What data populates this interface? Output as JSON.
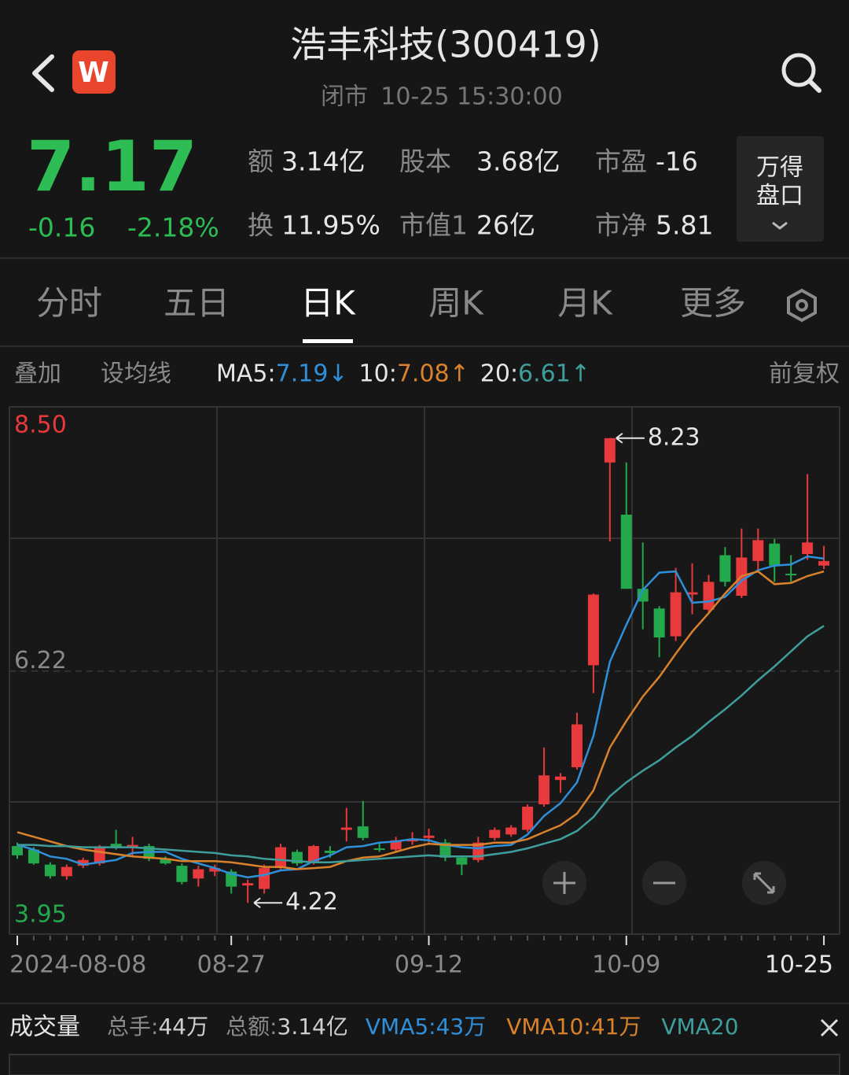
{
  "header": {
    "logo": "W",
    "title": "浩丰科技(300419)",
    "status": "闭市",
    "time": "10-25 15:30:00"
  },
  "quote": {
    "price": "7.17",
    "change": "-0.16",
    "change_pct": "-2.18%",
    "stats": [
      [
        {
          "label": "额",
          "value": "3.14亿"
        },
        {
          "label": "股本",
          "value": "3.68亿"
        },
        {
          "label": "市盈",
          "value": "-16"
        }
      ],
      [
        {
          "label": "换",
          "value": "11.95%"
        },
        {
          "label": "市值1",
          "value": "26亿"
        },
        {
          "label": "市净",
          "value": "5.81"
        }
      ]
    ],
    "panel_button": [
      "万得",
      "盘口"
    ]
  },
  "tabs": {
    "items": [
      "分时",
      "五日",
      "日K",
      "周K",
      "月K",
      "更多"
    ],
    "active": 2
  },
  "indicators": {
    "overlay": "叠加",
    "set_ma": "设均线",
    "ma": [
      {
        "name": "MA5:",
        "value": "7.19",
        "arrow": "↓"
      },
      {
        "name": "10:",
        "value": "7.08",
        "arrow": "↑"
      },
      {
        "name": "20:",
        "value": "6.61",
        "arrow": "↑"
      }
    ],
    "adjust": "前复权"
  },
  "chart_data": {
    "type": "candlestick",
    "categories": [
      "2024-08-08",
      null,
      null,
      null,
      null,
      null,
      null,
      null,
      null,
      null,
      null,
      null,
      null,
      "08-27",
      null,
      null,
      null,
      null,
      null,
      null,
      null,
      null,
      null,
      null,
      null,
      "09-12",
      null,
      null,
      null,
      null,
      null,
      null,
      null,
      null,
      null,
      null,
      null,
      "10-09",
      null,
      null,
      null,
      null,
      null,
      null,
      null,
      null,
      null,
      null,
      null,
      "10-25"
    ],
    "open": [
      4.71,
      4.68,
      4.55,
      4.45,
      4.54,
      4.56,
      4.73,
      4.7,
      4.71,
      4.6,
      4.54,
      4.43,
      4.49,
      4.49,
      4.37,
      4.34,
      4.52,
      4.66,
      4.57,
      4.67,
      4.85,
      4.88,
      4.69,
      4.68,
      4.75,
      4.78,
      4.74,
      4.61,
      4.59,
      4.78,
      4.81,
      4.85,
      5.07,
      5.28,
      5.39,
      6.27,
      8.02,
      7.57,
      6.93,
      6.76,
      6.52,
      6.88,
      6.75,
      7.22,
      6.87,
      7.17,
      7.32,
      7.06,
      7.23,
      7.13
    ],
    "high": [
      4.74,
      4.7,
      4.57,
      4.55,
      4.61,
      4.72,
      4.85,
      4.79,
      4.73,
      4.62,
      4.56,
      4.54,
      4.55,
      4.51,
      4.42,
      4.55,
      4.73,
      4.68,
      4.72,
      4.71,
      5.04,
      5.1,
      4.73,
      4.79,
      4.83,
      4.86,
      4.77,
      4.63,
      4.79,
      4.87,
      4.89,
      5.07,
      5.56,
      5.34,
      5.86,
      6.89,
      8.23,
      8.02,
      7.33,
      6.78,
      7.11,
      7.15,
      7.05,
      7.29,
      7.45,
      7.45,
      7.36,
      7.22,
      7.92,
      7.3
    ],
    "low": [
      4.6,
      4.55,
      4.43,
      4.42,
      4.52,
      4.54,
      4.68,
      4.62,
      4.58,
      4.55,
      4.38,
      4.36,
      4.45,
      4.3,
      4.22,
      4.3,
      4.5,
      4.54,
      4.55,
      4.61,
      4.75,
      4.76,
      4.66,
      4.66,
      4.72,
      4.74,
      4.58,
      4.46,
      4.57,
      4.76,
      4.79,
      4.83,
      5.05,
      5.17,
      5.37,
      6.03,
      7.34,
      6.93,
      6.58,
      6.34,
      6.48,
      6.71,
      6.73,
      6.95,
      6.85,
      7.07,
      6.99,
      6.99,
      7.18,
      7.1
    ],
    "close": [
      4.63,
      4.56,
      4.45,
      4.53,
      4.59,
      4.7,
      4.7,
      4.72,
      4.6,
      4.56,
      4.4,
      4.51,
      4.52,
      4.36,
      4.39,
      4.52,
      4.7,
      4.56,
      4.71,
      4.65,
      4.87,
      4.78,
      4.68,
      4.76,
      4.77,
      4.8,
      4.61,
      4.55,
      4.74,
      4.85,
      4.87,
      5.05,
      5.32,
      5.31,
      5.76,
      6.88,
      8.23,
      6.93,
      6.82,
      6.51,
      6.9,
      6.9,
      6.99,
      6.99,
      7.2,
      7.35,
      7.13,
      7.05,
      7.33,
      7.17
    ],
    "up_color": "#e8393d",
    "down_color": "#23a84b",
    "lines": [
      {
        "color": "#2f8fd8",
        "values": [
          4.72,
          4.68,
          4.62,
          4.6,
          4.55,
          4.57,
          4.59,
          4.65,
          4.66,
          4.66,
          4.6,
          4.56,
          4.52,
          4.47,
          4.44,
          4.46,
          4.5,
          4.51,
          4.58,
          4.63,
          4.7,
          4.71,
          4.74,
          4.75,
          4.77,
          4.76,
          4.72,
          4.7,
          4.69,
          4.71,
          4.72,
          4.81,
          4.97,
          5.08,
          5.26,
          5.66,
          6.3,
          6.62,
          6.92,
          7.07,
          7.08,
          6.81,
          6.82,
          6.86,
          7.0,
          7.09,
          7.13,
          7.14,
          7.21,
          7.19
        ]
      },
      {
        "color": "#d9822b",
        "values": [
          4.83,
          4.79,
          4.75,
          4.71,
          4.68,
          4.66,
          4.64,
          4.62,
          4.61,
          4.6,
          4.58,
          4.58,
          4.58,
          4.57,
          4.55,
          4.53,
          4.53,
          4.51,
          4.52,
          4.53,
          4.58,
          4.61,
          4.62,
          4.66,
          4.7,
          4.73,
          4.72,
          4.72,
          4.72,
          4.74,
          4.74,
          4.77,
          4.83,
          4.89,
          4.99,
          5.19,
          5.56,
          5.79,
          6.0,
          6.17,
          6.37,
          6.56,
          6.72,
          6.89,
          7.04,
          7.08,
          6.97,
          6.98,
          7.04,
          7.08
        ]
      },
      {
        "color": "#3f9e9c",
        "values": [
          4.72,
          4.72,
          4.71,
          4.71,
          4.7,
          4.7,
          4.7,
          4.7,
          4.69,
          4.68,
          4.67,
          4.66,
          4.65,
          4.63,
          4.62,
          4.6,
          4.59,
          4.58,
          4.57,
          4.57,
          4.58,
          4.59,
          4.6,
          4.61,
          4.62,
          4.63,
          4.62,
          4.62,
          4.62,
          4.64,
          4.66,
          4.69,
          4.73,
          4.77,
          4.84,
          4.96,
          5.14,
          5.26,
          5.36,
          5.45,
          5.56,
          5.66,
          5.78,
          5.89,
          6.01,
          6.14,
          6.26,
          6.39,
          6.52,
          6.61
        ]
      }
    ],
    "max_label": 8.23,
    "min_label": 4.22,
    "ylim": [
      3.95,
      8.5
    ],
    "yticks": [
      {
        "value": 8.5,
        "label": "8.50"
      },
      6.22,
      3.95
    ],
    "ytick_colors": [
      "#e8393d",
      "#8a8a8a",
      "#23a84b"
    ],
    "grid": true
  },
  "volume_bar": {
    "title": "成交量",
    "items": [
      {
        "label": "总手:",
        "value": "44万"
      },
      {
        "label": "总额:",
        "value": "3.14亿"
      }
    ],
    "vma": [
      "VMA5:43万",
      "VMA10:41万",
      "VMA20"
    ]
  }
}
